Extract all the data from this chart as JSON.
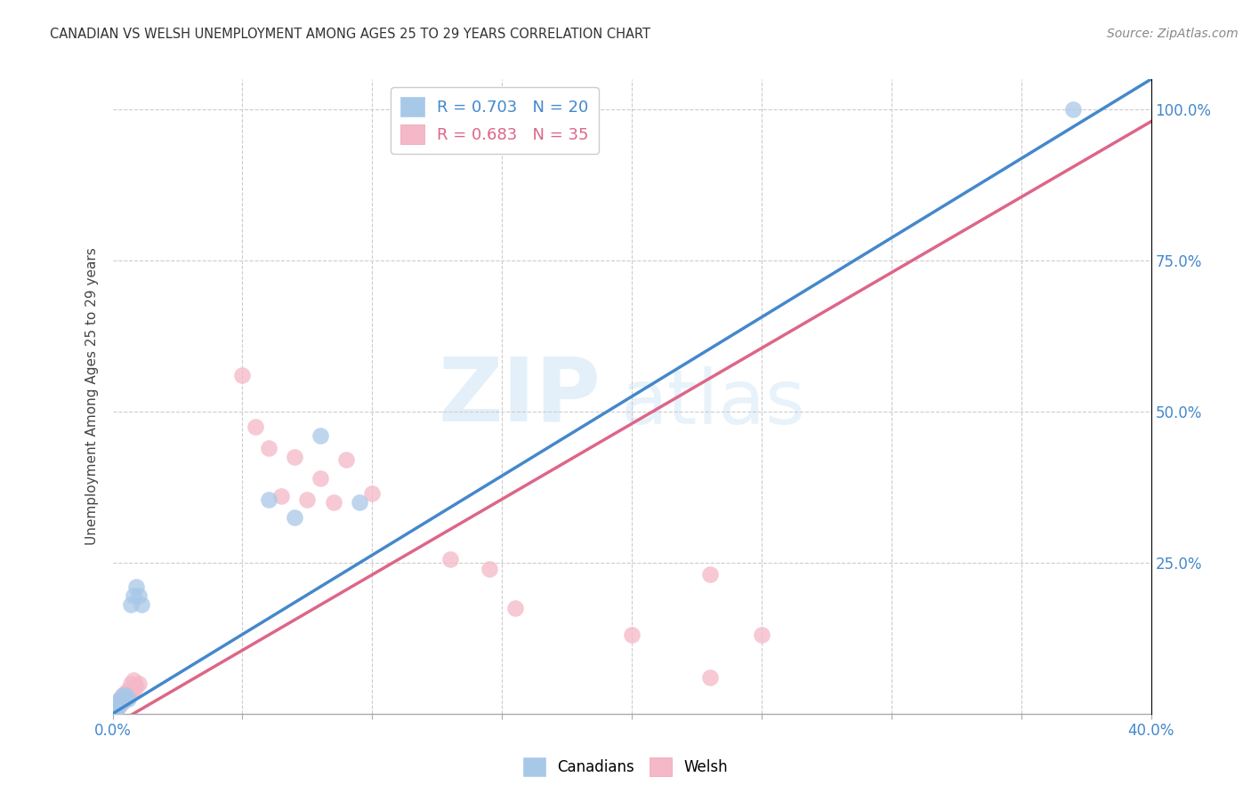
{
  "title": "CANADIAN VS WELSH UNEMPLOYMENT AMONG AGES 25 TO 29 YEARS CORRELATION CHART",
  "source": "Source: ZipAtlas.com",
  "ylabel": "Unemployment Among Ages 25 to 29 years",
  "legend_canadian": "R = 0.703   N = 20",
  "legend_welsh": "R = 0.683   N = 35",
  "canadian_color": "#a8c8e8",
  "welsh_color": "#f4b8c8",
  "canadian_line_color": "#4488cc",
  "welsh_line_color": "#dd6688",
  "watermark_zip": "ZIP",
  "watermark_atlas": "atlas",
  "canadians_x": [
    0.001,
    0.002,
    0.002,
    0.003,
    0.003,
    0.004,
    0.004,
    0.005,
    0.005,
    0.006,
    0.007,
    0.008,
    0.009,
    0.01,
    0.011,
    0.06,
    0.07,
    0.08,
    0.095,
    0.37
  ],
  "canadians_y": [
    0.005,
    0.01,
    0.015,
    0.02,
    0.025,
    0.02,
    0.03,
    0.025,
    0.03,
    0.025,
    0.18,
    0.195,
    0.21,
    0.195,
    0.18,
    0.355,
    0.325,
    0.46,
    0.35,
    1.0
  ],
  "welsh_x": [
    0.001,
    0.001,
    0.002,
    0.002,
    0.003,
    0.003,
    0.004,
    0.004,
    0.005,
    0.005,
    0.006,
    0.006,
    0.007,
    0.007,
    0.008,
    0.008,
    0.009,
    0.01,
    0.05,
    0.055,
    0.06,
    0.065,
    0.07,
    0.075,
    0.08,
    0.085,
    0.09,
    0.1,
    0.13,
    0.145,
    0.155,
    0.2,
    0.23,
    0.25,
    0.23
  ],
  "welsh_y": [
    0.005,
    0.01,
    0.01,
    0.02,
    0.015,
    0.025,
    0.02,
    0.03,
    0.025,
    0.035,
    0.03,
    0.04,
    0.035,
    0.05,
    0.04,
    0.055,
    0.045,
    0.05,
    0.56,
    0.475,
    0.44,
    0.36,
    0.425,
    0.355,
    0.39,
    0.35,
    0.42,
    0.365,
    0.255,
    0.24,
    0.175,
    0.13,
    0.23,
    0.13,
    0.06
  ],
  "canadian_line_x0": 0.0,
  "canadian_line_y0": 0.0,
  "canadian_line_x1": 0.4,
  "canadian_line_y1": 1.05,
  "welsh_line_x0": 0.0,
  "welsh_line_y0": -0.02,
  "welsh_line_x1": 0.4,
  "welsh_line_y1": 0.98,
  "xlim": [
    0,
    0.4
  ],
  "ylim": [
    0,
    1.05
  ],
  "xtick_positions": [
    0.0,
    0.05,
    0.1,
    0.15,
    0.2,
    0.25,
    0.3,
    0.35,
    0.4
  ],
  "ytick_positions": [
    0.0,
    0.25,
    0.5,
    0.75,
    1.0
  ],
  "right_ytick_labels": [
    "",
    "25.0%",
    "50.0%",
    "75.0%",
    "100.0%"
  ],
  "grid_color": "#cccccc",
  "background_color": "#ffffff",
  "tick_color": "#4488cc",
  "title_color": "#333333",
  "source_color": "#888888"
}
